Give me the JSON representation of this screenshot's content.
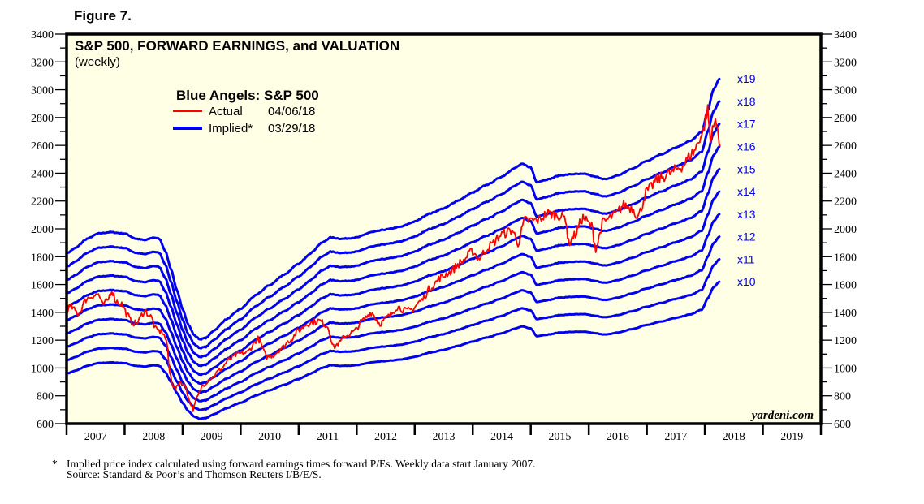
{
  "figure_label": "Figure 7.",
  "footnote": {
    "marker": "*",
    "line1": "Implied price index calculated using forward earnings times forward P/Es. Weekly data start January 2007.",
    "line2": "Source: Standard & Poor’s and Thomson Reuters I/B/E/S."
  },
  "chart_data": {
    "type": "line",
    "title": "S&P 500, FORWARD EARNINGS, and VALUATION",
    "subtitle": "(weekly)",
    "watermark": "yardeni.com",
    "legend": {
      "title": "Blue Angels: S&P 500",
      "placement": "top-left",
      "entries": [
        {
          "label": "Actual",
          "date": "04/06/18",
          "color": "#ff0000"
        },
        {
          "label": "Implied*",
          "date": "03/29/18",
          "color": "#0000ee"
        }
      ]
    },
    "xlabel": "",
    "ylabel": "",
    "xlim": [
      2007.0,
      2020.0
    ],
    "ylim": [
      600,
      3400
    ],
    "y_ticks": [
      600,
      800,
      1000,
      1200,
      1400,
      1600,
      1800,
      2000,
      2200,
      2400,
      2600,
      2800,
      3000,
      3200,
      3400
    ],
    "y_minor_step": 100,
    "x_tick_labels": [
      "2007",
      "2008",
      "2009",
      "2010",
      "2011",
      "2012",
      "2013",
      "2014",
      "2015",
      "2016",
      "2017",
      "2018",
      "2019"
    ],
    "grid": false,
    "multiples": [
      10,
      11,
      12,
      13,
      14,
      15,
      16,
      17,
      18,
      19
    ],
    "multiple_labels": [
      "x10",
      "x11",
      "x12",
      "x13",
      "x14",
      "x15",
      "x16",
      "x17",
      "x18",
      "x19"
    ],
    "forward_earnings": {
      "name": "S&P 500 forward earnings (implied base)",
      "x": [
        2007.0,
        2007.15,
        2007.35,
        2007.55,
        2007.75,
        2008.0,
        2008.2,
        2008.35,
        2008.5,
        2008.6,
        2008.7,
        2008.8,
        2008.9,
        2009.0,
        2009.1,
        2009.2,
        2009.3,
        2009.4,
        2009.55,
        2009.75,
        2010.0,
        2010.25,
        2010.5,
        2010.75,
        2011.0,
        2011.2,
        2011.4,
        2011.55,
        2011.75,
        2012.0,
        2012.25,
        2012.5,
        2012.75,
        2013.0,
        2013.25,
        2013.5,
        2013.75,
        2014.0,
        2014.25,
        2014.5,
        2014.7,
        2014.85,
        2015.0,
        2015.1,
        2015.3,
        2015.5,
        2015.75,
        2015.95,
        2016.1,
        2016.3,
        2016.5,
        2016.75,
        2017.0,
        2017.25,
        2017.5,
        2017.75,
        2017.95,
        2018.05,
        2018.15,
        2018.25
      ],
      "values": [
        96,
        98,
        101.5,
        103.5,
        104,
        103.5,
        101.5,
        101,
        102,
        101.5,
        97,
        90,
        82,
        75,
        69,
        65,
        63.5,
        64,
        67,
        71,
        75,
        80,
        84,
        88,
        92,
        96,
        100,
        102,
        101.5,
        102,
        104,
        105,
        106,
        108,
        111,
        113,
        116,
        119,
        122,
        125,
        128,
        129.8,
        128.5,
        123,
        124,
        125.5,
        126,
        126,
        125,
        124,
        125.5,
        128,
        131,
        133.5,
        136,
        138.5,
        142,
        150,
        158,
        162
      ]
    },
    "actual": {
      "name": "S&P 500 actual",
      "x": [
        2007.0,
        2007.08,
        2007.15,
        2007.2,
        2007.35,
        2007.45,
        2007.55,
        2007.62,
        2007.7,
        2007.78,
        2007.85,
        2007.95,
        2008.05,
        2008.12,
        2008.2,
        2008.35,
        2008.45,
        2008.55,
        2008.65,
        2008.72,
        2008.78,
        2008.83,
        2008.88,
        2008.95,
        2009.05,
        2009.12,
        2009.18,
        2009.25,
        2009.35,
        2009.5,
        2009.65,
        2009.8,
        2009.95,
        2010.1,
        2010.3,
        2010.45,
        2010.55,
        2010.7,
        2010.85,
        2011.0,
        2011.15,
        2011.35,
        2011.5,
        2011.6,
        2011.7,
        2011.8,
        2011.95,
        2012.1,
        2012.25,
        2012.4,
        2012.55,
        2012.7,
        2012.85,
        2012.95,
        2013.1,
        2013.3,
        2013.45,
        2013.6,
        2013.8,
        2014.0,
        2014.1,
        2014.3,
        2014.5,
        2014.68,
        2014.78,
        2014.9,
        2015.1,
        2015.3,
        2015.45,
        2015.6,
        2015.65,
        2015.75,
        2015.9,
        2016.05,
        2016.12,
        2016.25,
        2016.45,
        2016.6,
        2016.75,
        2016.85,
        2017.0,
        2017.2,
        2017.4,
        2017.6,
        2017.8,
        2017.95,
        2018.05,
        2018.1,
        2018.15,
        2018.2,
        2018.25,
        2018.27
      ],
      "values": [
        1420,
        1440,
        1410,
        1390,
        1500,
        1520,
        1530,
        1450,
        1480,
        1562,
        1480,
        1460,
        1380,
        1330,
        1320,
        1410,
        1370,
        1270,
        1260,
        1200,
        960,
        880,
        850,
        900,
        870,
        760,
        700,
        790,
        880,
        930,
        990,
        1060,
        1100,
        1110,
        1210,
        1080,
        1090,
        1140,
        1200,
        1270,
        1320,
        1340,
        1300,
        1150,
        1180,
        1230,
        1260,
        1340,
        1400,
        1320,
        1370,
        1440,
        1410,
        1420,
        1480,
        1590,
        1650,
        1690,
        1760,
        1840,
        1790,
        1880,
        1960,
        1990,
        1900,
        2060,
        2060,
        2110,
        2100,
        2080,
        1900,
        1950,
        2080,
        2020,
        1860,
        2050,
        2100,
        2170,
        2150,
        2090,
        2270,
        2360,
        2400,
        2450,
        2550,
        2680,
        2850,
        2620,
        2780,
        2740,
        2640,
        2604
      ]
    }
  }
}
